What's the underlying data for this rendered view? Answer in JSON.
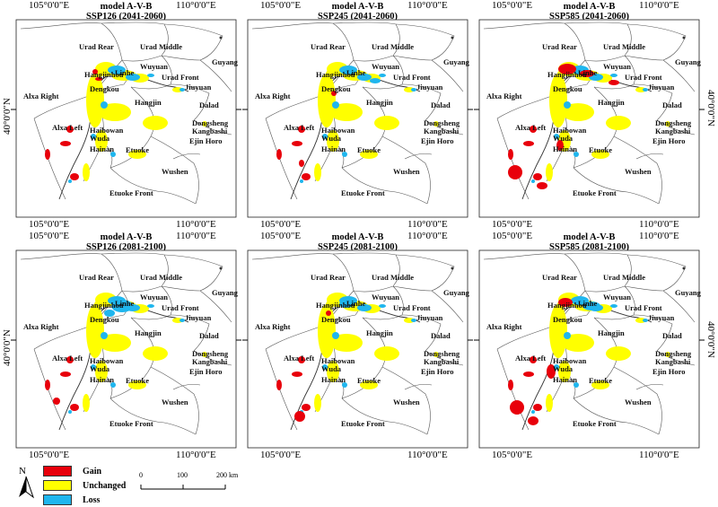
{
  "colors": {
    "gain": "#e8000b",
    "unchanged": "#ffff00",
    "loss": "#1fb6ee"
  },
  "coords": {
    "lon_left": "105°0'0\"E",
    "lon_right": "110°0'0\"E",
    "lat": "40°0'0\"N"
  },
  "panels": [
    {
      "model": "model A-V-B",
      "scenario": "SSP126 (2041-2060)"
    },
    {
      "model": "model A-V-B",
      "scenario": "SSP245 (2041-2060)"
    },
    {
      "model": "model A-V-B",
      "scenario": "SSP585 (2041-2060)"
    },
    {
      "model": "model A-V-B",
      "scenario": "SSP126 (2081-2100)"
    },
    {
      "model": "model A-V-B",
      "scenario": "SSP245 (2081-2100)"
    },
    {
      "model": "model A-V-B",
      "scenario": "SSP585 (2081-2100)"
    }
  ],
  "place_labels": {
    "urad_rear": "Urad Rear",
    "urad_middle": "Urad Middle",
    "urad_front": "Urad Front",
    "guyang": "Guyang",
    "jiuyuan": "Jiuyuan",
    "hangjinhou": "Hangjinhou",
    "linhe": "Linhe",
    "wuyuan": "Wuyuan",
    "dengkou": "Dengkou",
    "hangjin": "Hangjin",
    "dalad": "Dalad",
    "alxa_right": "Alxa Right",
    "alxa_left": "Alxa Left",
    "haibowan": "Haibowan",
    "wuda": "Wuda",
    "hainan": "Hainan",
    "etuoke": "Etuoke",
    "dongsheng": "Dongsheng",
    "kangbashi": "Kangbashi",
    "ejin_horo": "Ejin Horo",
    "wushen": "Wushen",
    "etuoke_front": "Etuoke Front"
  },
  "legend": {
    "north": "N",
    "gain": "Gain",
    "unchanged": "Unchanged",
    "loss": "Loss"
  },
  "scale": {
    "t0": "0",
    "t1": "100",
    "t2": "200 km"
  }
}
